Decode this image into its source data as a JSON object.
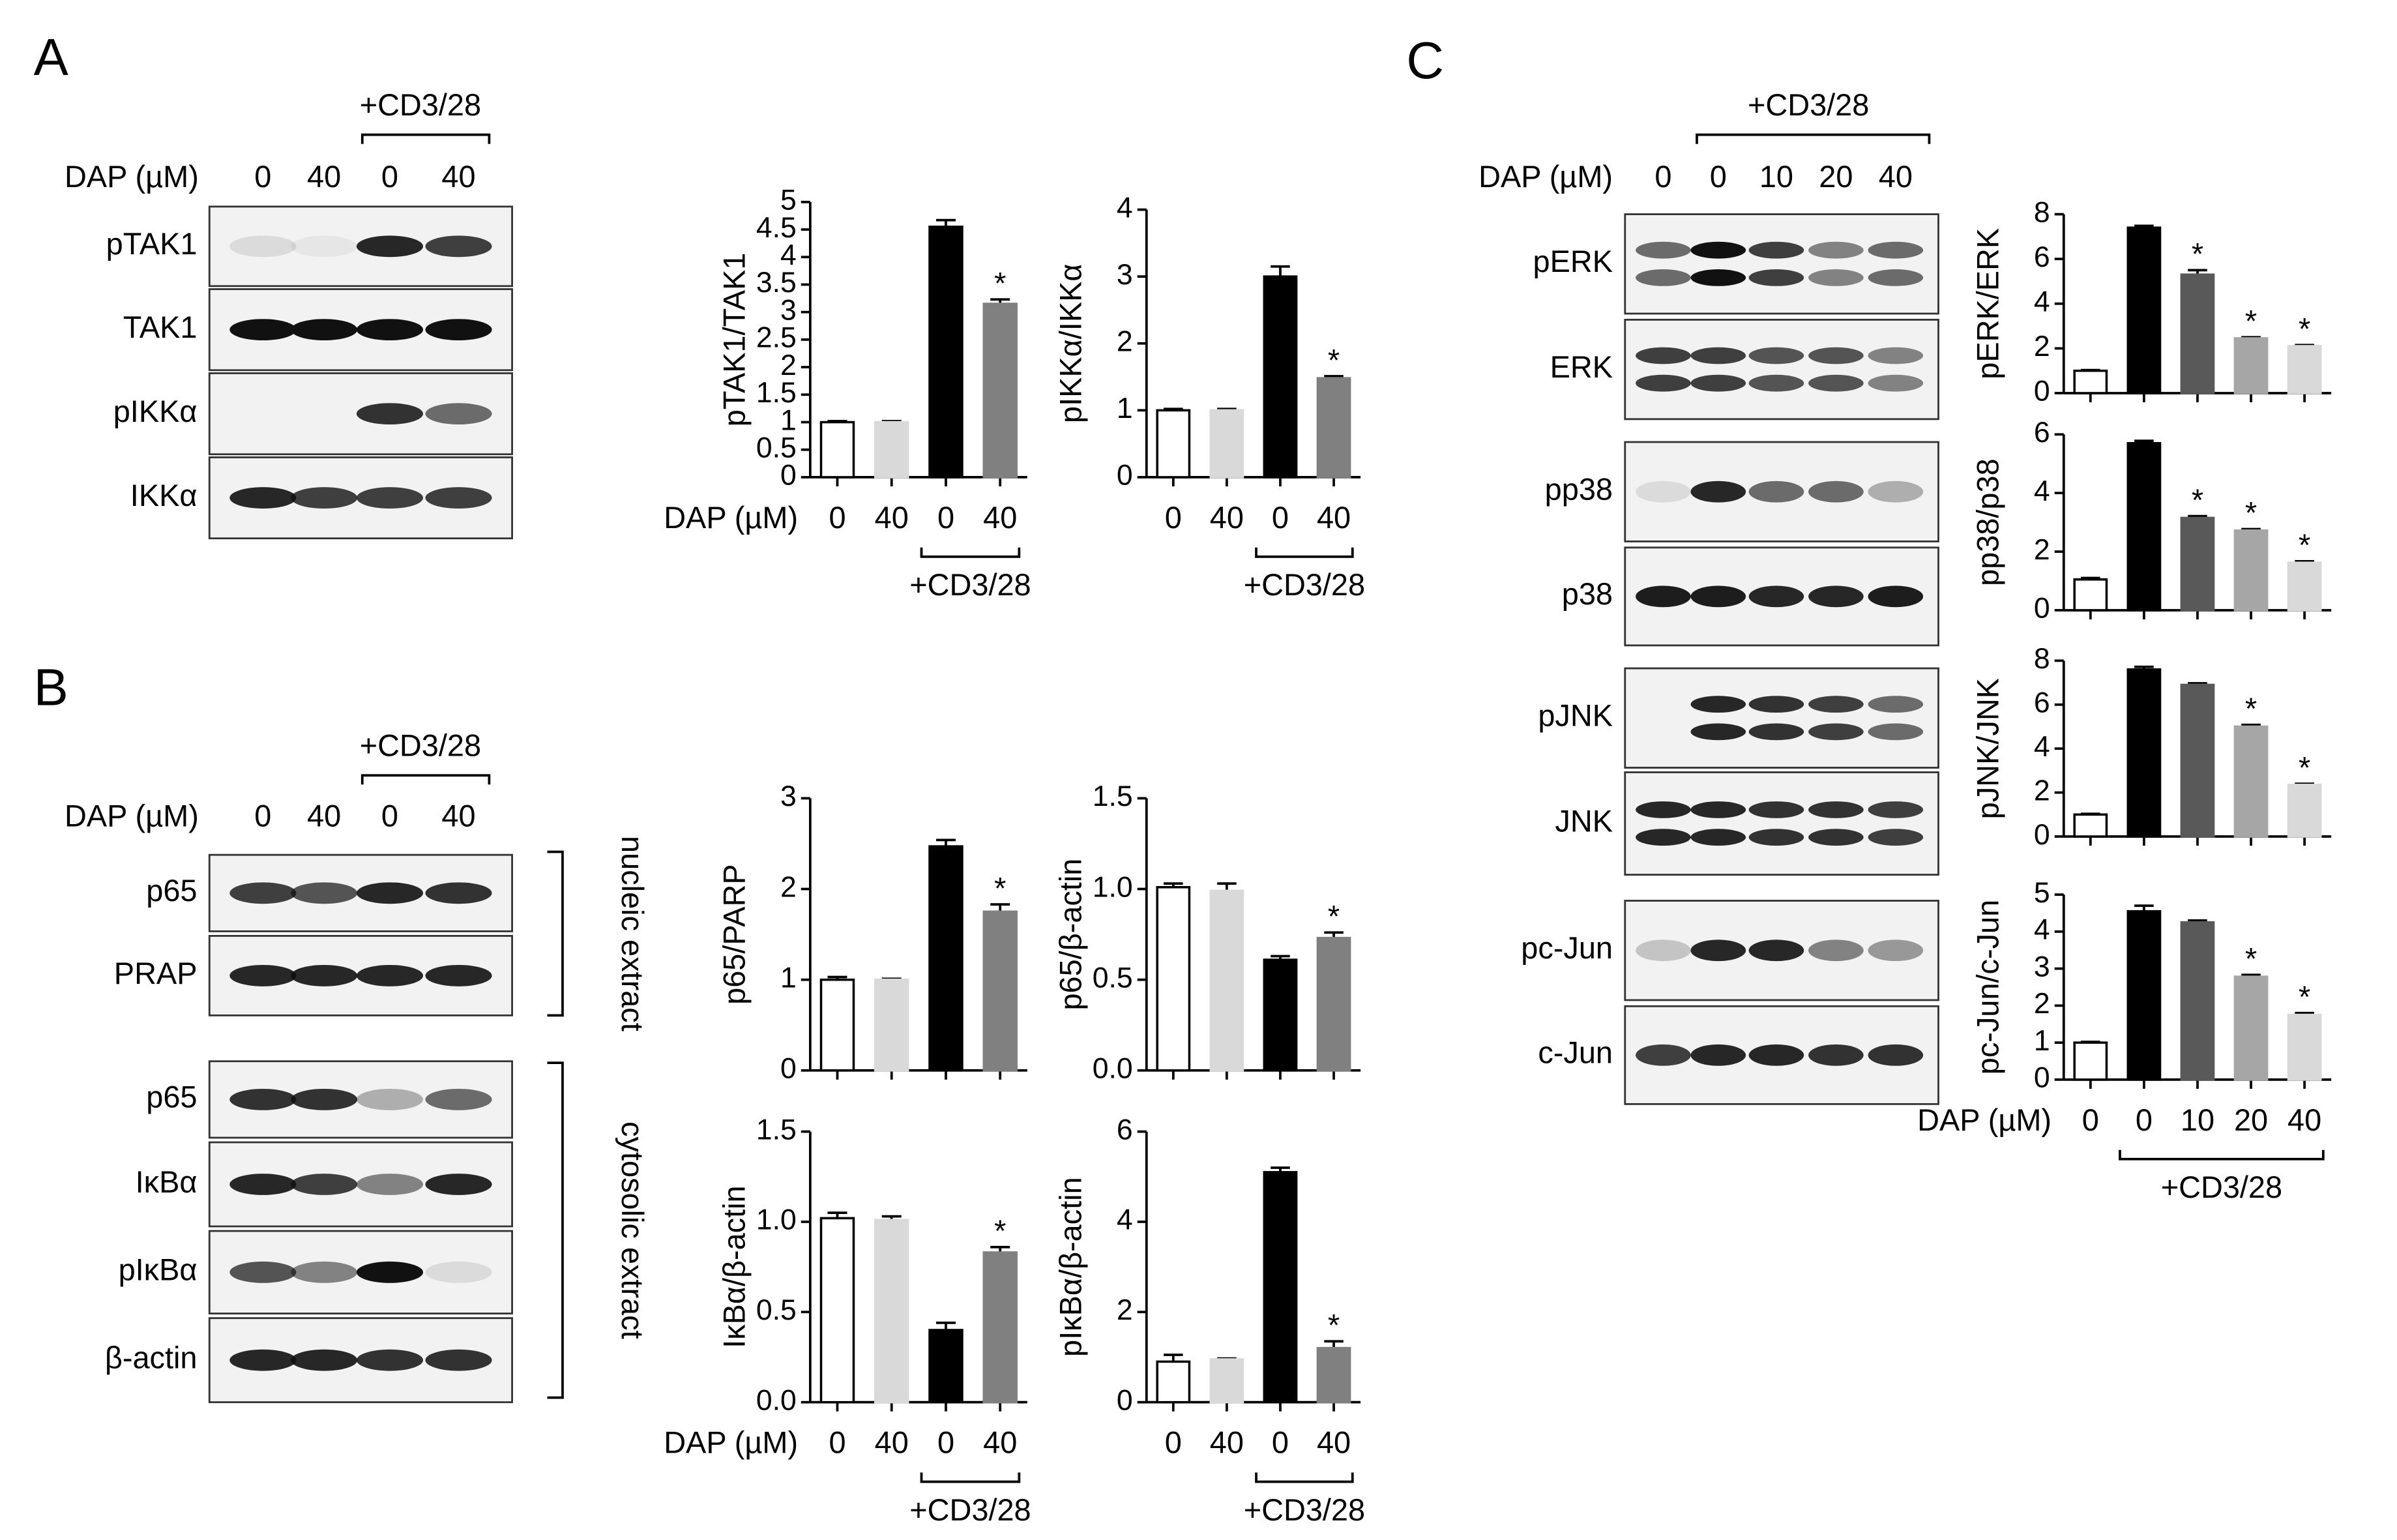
{
  "blots": [
    {
      "label": "A",
      "treatment": "+CD3/28",
      "dose_label": "DAP (µM)",
      "doses": [
        "0",
        "40",
        "0",
        "40"
      ],
      "rows": [
        "pTAK1",
        "TAK1",
        "pIKKα",
        "IKKα"
      ]
    },
    {
      "label": "B",
      "treatment": "+CD3/28",
      "dose_label": "DAP (µM)",
      "doses": [
        "0",
        "40",
        "0",
        "40"
      ],
      "rows": [
        "p65",
        "PRAP",
        "p65",
        "IκBα",
        "pIκBα",
        "β-actin"
      ],
      "fractions": [
        "nucleic extract",
        "cytosolic extract"
      ]
    },
    {
      "label": "C",
      "treatment": "+CD3/28",
      "dose_label": "DAP (µM)",
      "doses": [
        "0",
        "0",
        "10",
        "20",
        "40"
      ],
      "rows": [
        "pERK",
        "ERK",
        "pp38",
        "p38",
        "pJNK",
        "JNK",
        "pc-Jun",
        "c-Jun"
      ]
    }
  ],
  "chart_data": [
    {
      "type": "bar",
      "ylabel": "pTAK1/TAK1",
      "xlabel": "DAP (µM)",
      "categories": [
        "0",
        "40",
        "0",
        "40"
      ],
      "group_label": "+CD3/28",
      "values": [
        1.0,
        1.0,
        4.55,
        3.15
      ],
      "errors": [
        0.02,
        0.02,
        0.12,
        0.08
      ],
      "annotations": [
        null,
        null,
        null,
        "*"
      ],
      "colors": [
        "#ffffff",
        "#d9d9d9",
        "#000000",
        "#808080"
      ],
      "ylim": [
        0,
        5
      ],
      "yticks": [
        0,
        0.5,
        1,
        1.5,
        2,
        2.5,
        3,
        3.5,
        4,
        4.5,
        5
      ]
    },
    {
      "type": "bar",
      "ylabel": "pIKKα/IKKα",
      "categories": [
        "0",
        "40",
        "0",
        "40"
      ],
      "group_label": "+CD3/28",
      "values": [
        1.0,
        1.0,
        3.0,
        1.48
      ],
      "errors": [
        0.02,
        0.02,
        0.15,
        0.03
      ],
      "annotations": [
        null,
        null,
        null,
        "*"
      ],
      "colors": [
        "#ffffff",
        "#d9d9d9",
        "#000000",
        "#808080"
      ],
      "ylim": [
        0,
        4
      ],
      "yticks": [
        0,
        1,
        2,
        3,
        4
      ]
    },
    {
      "type": "bar",
      "ylabel": "p65/PARP",
      "values": [
        1.0,
        1.0,
        2.47,
        1.75
      ],
      "errors": [
        0.03,
        0.01,
        0.07,
        0.08
      ],
      "annotations": [
        null,
        null,
        null,
        "*"
      ],
      "colors": [
        "#ffffff",
        "#d9d9d9",
        "#000000",
        "#808080"
      ],
      "ylim": [
        0,
        3
      ],
      "yticks": [
        0,
        1,
        2,
        3
      ]
    },
    {
      "type": "bar",
      "ylabel": "p65/β-actin",
      "values": [
        1.01,
        0.99,
        0.61,
        0.73
      ],
      "errors": [
        0.02,
        0.04,
        0.02,
        0.03
      ],
      "annotations": [
        null,
        null,
        null,
        "*"
      ],
      "colors": [
        "#ffffff",
        "#d9d9d9",
        "#000000",
        "#808080"
      ],
      "ylim": [
        0,
        1.5
      ],
      "yticks": [
        {
          "value": 0,
          "label": "0.0"
        },
        0.5,
        {
          "value": 1,
          "label": "1.0"
        },
        1.5
      ]
    },
    {
      "type": "bar",
      "ylabel": "IκBα/β-actin",
      "xlabel": "DAP (µM)",
      "categories": [
        "0",
        "40",
        "0",
        "40"
      ],
      "group_label": "+CD3/28",
      "values": [
        1.02,
        1.01,
        0.4,
        0.83
      ],
      "errors": [
        0.03,
        0.02,
        0.04,
        0.03
      ],
      "annotations": [
        null,
        null,
        null,
        "*"
      ],
      "colors": [
        "#ffffff",
        "#d9d9d9",
        "#000000",
        "#808080"
      ],
      "ylim": [
        0,
        1.5
      ],
      "yticks": [
        {
          "value": 0,
          "label": "0.0"
        },
        0.5,
        {
          "value": 1,
          "label": "1.0"
        },
        1.5
      ]
    },
    {
      "type": "bar",
      "ylabel": "pIκBα/β-actin",
      "categories": [
        "0",
        "40",
        "0",
        "40"
      ],
      "group_label": "+CD3/28",
      "values": [
        0.9,
        0.95,
        5.1,
        1.2
      ],
      "errors": [
        0.15,
        0.02,
        0.1,
        0.15
      ],
      "annotations": [
        null,
        null,
        null,
        "*"
      ],
      "colors": [
        "#ffffff",
        "#d9d9d9",
        "#000000",
        "#808080"
      ],
      "ylim": [
        0,
        6
      ],
      "yticks": [
        0,
        2,
        4,
        6
      ]
    },
    {
      "type": "bar",
      "ylabel": "pERK/ERK",
      "values": [
        1.0,
        7.4,
        5.3,
        2.45,
        2.1
      ],
      "errors": [
        0.03,
        0.08,
        0.2,
        0.05,
        0.05
      ],
      "annotations": [
        null,
        null,
        "*",
        "*",
        "*"
      ],
      "colors": [
        "#ffffff",
        "#000000",
        "#595959",
        "#a6a6a6",
        "#d9d9d9"
      ],
      "ylim": [
        0,
        8
      ],
      "yticks": [
        0,
        2,
        4,
        6,
        8
      ]
    },
    {
      "type": "bar",
      "ylabel": "pp38/p38",
      "values": [
        1.05,
        5.7,
        3.15,
        2.72,
        1.62
      ],
      "errors": [
        0.05,
        0.08,
        0.06,
        0.05,
        0.05
      ],
      "annotations": [
        null,
        null,
        "*",
        "*",
        "*"
      ],
      "colors": [
        "#ffffff",
        "#000000",
        "#595959",
        "#a6a6a6",
        "#d9d9d9"
      ],
      "ylim": [
        0,
        6
      ],
      "yticks": [
        0,
        2,
        4,
        6
      ]
    },
    {
      "type": "bar",
      "ylabel": "pJNK/JNK",
      "values": [
        1.0,
        7.6,
        6.9,
        5.0,
        2.35
      ],
      "errors": [
        0.03,
        0.12,
        0.07,
        0.08,
        0.05
      ],
      "annotations": [
        null,
        null,
        null,
        "*",
        "*"
      ],
      "colors": [
        "#ffffff",
        "#000000",
        "#595959",
        "#a6a6a6",
        "#d9d9d9"
      ],
      "ylim": [
        0,
        8
      ],
      "yticks": [
        0,
        2,
        4,
        6,
        8
      ]
    },
    {
      "type": "bar",
      "ylabel": "pc-Jun/c-Jun",
      "xlabel": "DAP (µM)",
      "categories": [
        "0",
        "0",
        "10",
        "20",
        "40"
      ],
      "group_label": "+CD3/28",
      "values": [
        1.0,
        4.55,
        4.25,
        2.78,
        1.75
      ],
      "errors": [
        0.02,
        0.15,
        0.05,
        0.05,
        0.05
      ],
      "annotations": [
        null,
        null,
        null,
        "*",
        "*"
      ],
      "colors": [
        "#ffffff",
        "#000000",
        "#595959",
        "#a6a6a6",
        "#d9d9d9"
      ],
      "ylim": [
        0,
        5
      ],
      "yticks": [
        0,
        1,
        2,
        3,
        4,
        5
      ]
    }
  ]
}
